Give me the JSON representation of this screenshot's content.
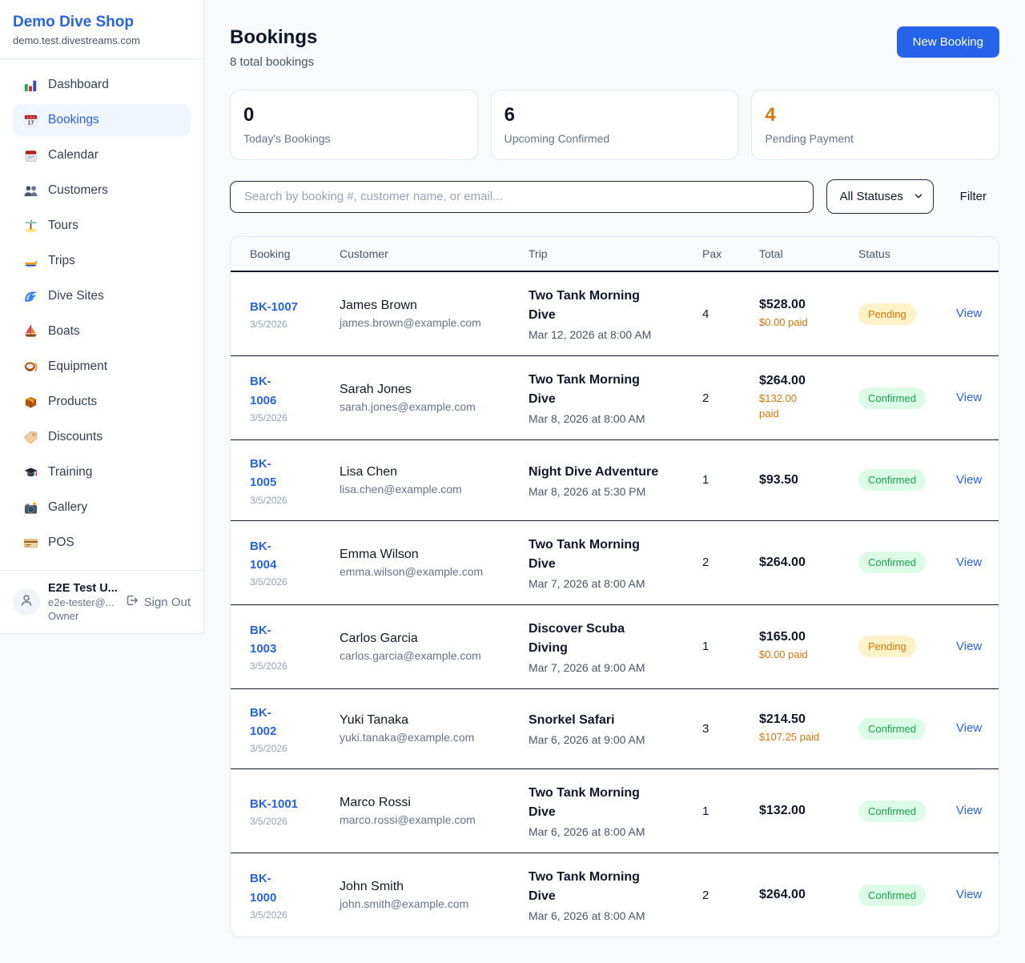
{
  "brand": {
    "name": "Demo Dive Shop",
    "domain": "demo.test.divestreams.com"
  },
  "sidebar": {
    "items": [
      {
        "id": "dashboard",
        "label": "Dashboard",
        "icon": "bar-chart-icon",
        "active": false
      },
      {
        "id": "bookings",
        "label": "Bookings",
        "icon": "calendar-17-icon",
        "active": true
      },
      {
        "id": "calendar",
        "label": "Calendar",
        "icon": "tear-calendar-icon",
        "active": false
      },
      {
        "id": "customers",
        "label": "Customers",
        "icon": "two-people-icon",
        "active": false
      },
      {
        "id": "tours",
        "label": "Tours",
        "icon": "palm-island-icon",
        "active": false
      },
      {
        "id": "trips",
        "label": "Trips",
        "icon": "speedboat-icon",
        "active": false
      },
      {
        "id": "dive-sites",
        "label": "Dive Sites",
        "icon": "wave-icon",
        "active": false
      },
      {
        "id": "boats",
        "label": "Boats",
        "icon": "sailboat-icon",
        "active": false
      },
      {
        "id": "equipment",
        "label": "Equipment",
        "icon": "diving-mask-icon",
        "active": false
      },
      {
        "id": "products",
        "label": "Products",
        "icon": "package-box-icon",
        "active": false
      },
      {
        "id": "discounts",
        "label": "Discounts",
        "icon": "price-tag-icon",
        "active": false
      },
      {
        "id": "training",
        "label": "Training",
        "icon": "graduation-cap-icon",
        "active": false
      },
      {
        "id": "gallery",
        "label": "Gallery",
        "icon": "camera-flash-icon",
        "active": false
      },
      {
        "id": "pos",
        "label": "POS",
        "icon": "credit-card-icon",
        "active": false
      }
    ]
  },
  "user": {
    "name": "E2E Test U...",
    "email": "e2e-tester@...",
    "role": "Owner",
    "sign_out_label": "Sign Out"
  },
  "header": {
    "title": "Bookings",
    "subtitle": "8 total bookings",
    "new_booking_label": "New Booking"
  },
  "stats": [
    {
      "value": "0",
      "label": "Today's Bookings",
      "color": "#0f172a"
    },
    {
      "value": "6",
      "label": "Upcoming Confirmed",
      "color": "#0f172a"
    },
    {
      "value": "4",
      "label": "Pending Payment",
      "color": "#d97706"
    }
  ],
  "filters": {
    "search_placeholder": "Search by booking #, customer name, or email...",
    "status_selected": "All Statuses",
    "filter_label": "Filter"
  },
  "status_colors": {
    "Pending": {
      "bg": "#fef3c7",
      "text": "#d97706"
    },
    "Confirmed": {
      "bg": "#dcfce7",
      "text": "#16a34a"
    }
  },
  "accent_color": "#2563eb",
  "table": {
    "columns": [
      "Booking",
      "Customer",
      "Trip",
      "Pax",
      "Total",
      "Status",
      ""
    ],
    "view_label": "View",
    "rows": [
      {
        "id_display": "BK-1007",
        "date": "3/5/2026",
        "customer_name": "James Brown",
        "customer_email": "james.brown@example.com",
        "trip_name": "Two Tank Morning\nDive",
        "trip_datetime": "Mar 12, 2026 at 8:00 AM",
        "pax": "4",
        "total": "$528.00",
        "paid": "$0.00 paid",
        "status": "Pending"
      },
      {
        "id_display": "BK-\n1006",
        "date": "3/5/2026",
        "customer_name": "Sarah Jones",
        "customer_email": "sarah.jones@example.com",
        "trip_name": "Two Tank Morning\nDive",
        "trip_datetime": "Mar 8, 2026 at 8:00 AM",
        "pax": "2",
        "total": "$264.00",
        "paid": "$132.00\npaid",
        "status": "Confirmed"
      },
      {
        "id_display": "BK-\n1005",
        "date": "3/5/2026",
        "customer_name": "Lisa Chen",
        "customer_email": "lisa.chen@example.com",
        "trip_name": "Night Dive Adventure",
        "trip_datetime": "Mar 8, 2026 at 5:30 PM",
        "pax": "1",
        "total": "$93.50",
        "paid": "",
        "status": "Confirmed"
      },
      {
        "id_display": "BK-\n1004",
        "date": "3/5/2026",
        "customer_name": "Emma Wilson",
        "customer_email": "emma.wilson@example.com",
        "trip_name": "Two Tank Morning\nDive",
        "trip_datetime": "Mar 7, 2026 at 8:00 AM",
        "pax": "2",
        "total": "$264.00",
        "paid": "",
        "status": "Confirmed"
      },
      {
        "id_display": "BK-\n1003",
        "date": "3/5/2026",
        "customer_name": "Carlos Garcia",
        "customer_email": "carlos.garcia@example.com",
        "trip_name": "Discover Scuba\nDiving",
        "trip_datetime": "Mar 7, 2026 at 9:00 AM",
        "pax": "1",
        "total": "$165.00",
        "paid": "$0.00 paid",
        "status": "Pending"
      },
      {
        "id_display": "BK-\n1002",
        "date": "3/5/2026",
        "customer_name": "Yuki Tanaka",
        "customer_email": "yuki.tanaka@example.com",
        "trip_name": "Snorkel Safari",
        "trip_datetime": "Mar 6, 2026 at 9:00 AM",
        "pax": "3",
        "total": "$214.50",
        "paid": "$107.25 paid",
        "status": "Confirmed"
      },
      {
        "id_display": "BK-1001",
        "date": "3/5/2026",
        "customer_name": "Marco Rossi",
        "customer_email": "marco.rossi@example.com",
        "trip_name": "Two Tank Morning\nDive",
        "trip_datetime": "Mar 6, 2026 at 8:00 AM",
        "pax": "1",
        "total": "$132.00",
        "paid": "",
        "status": "Confirmed"
      },
      {
        "id_display": "BK-\n1000",
        "date": "3/5/2026",
        "customer_name": "John Smith",
        "customer_email": "john.smith@example.com",
        "trip_name": "Two Tank Morning\nDive",
        "trip_datetime": "Mar 6, 2026 at 8:00 AM",
        "pax": "2",
        "total": "$264.00",
        "paid": "",
        "status": "Confirmed"
      }
    ]
  }
}
